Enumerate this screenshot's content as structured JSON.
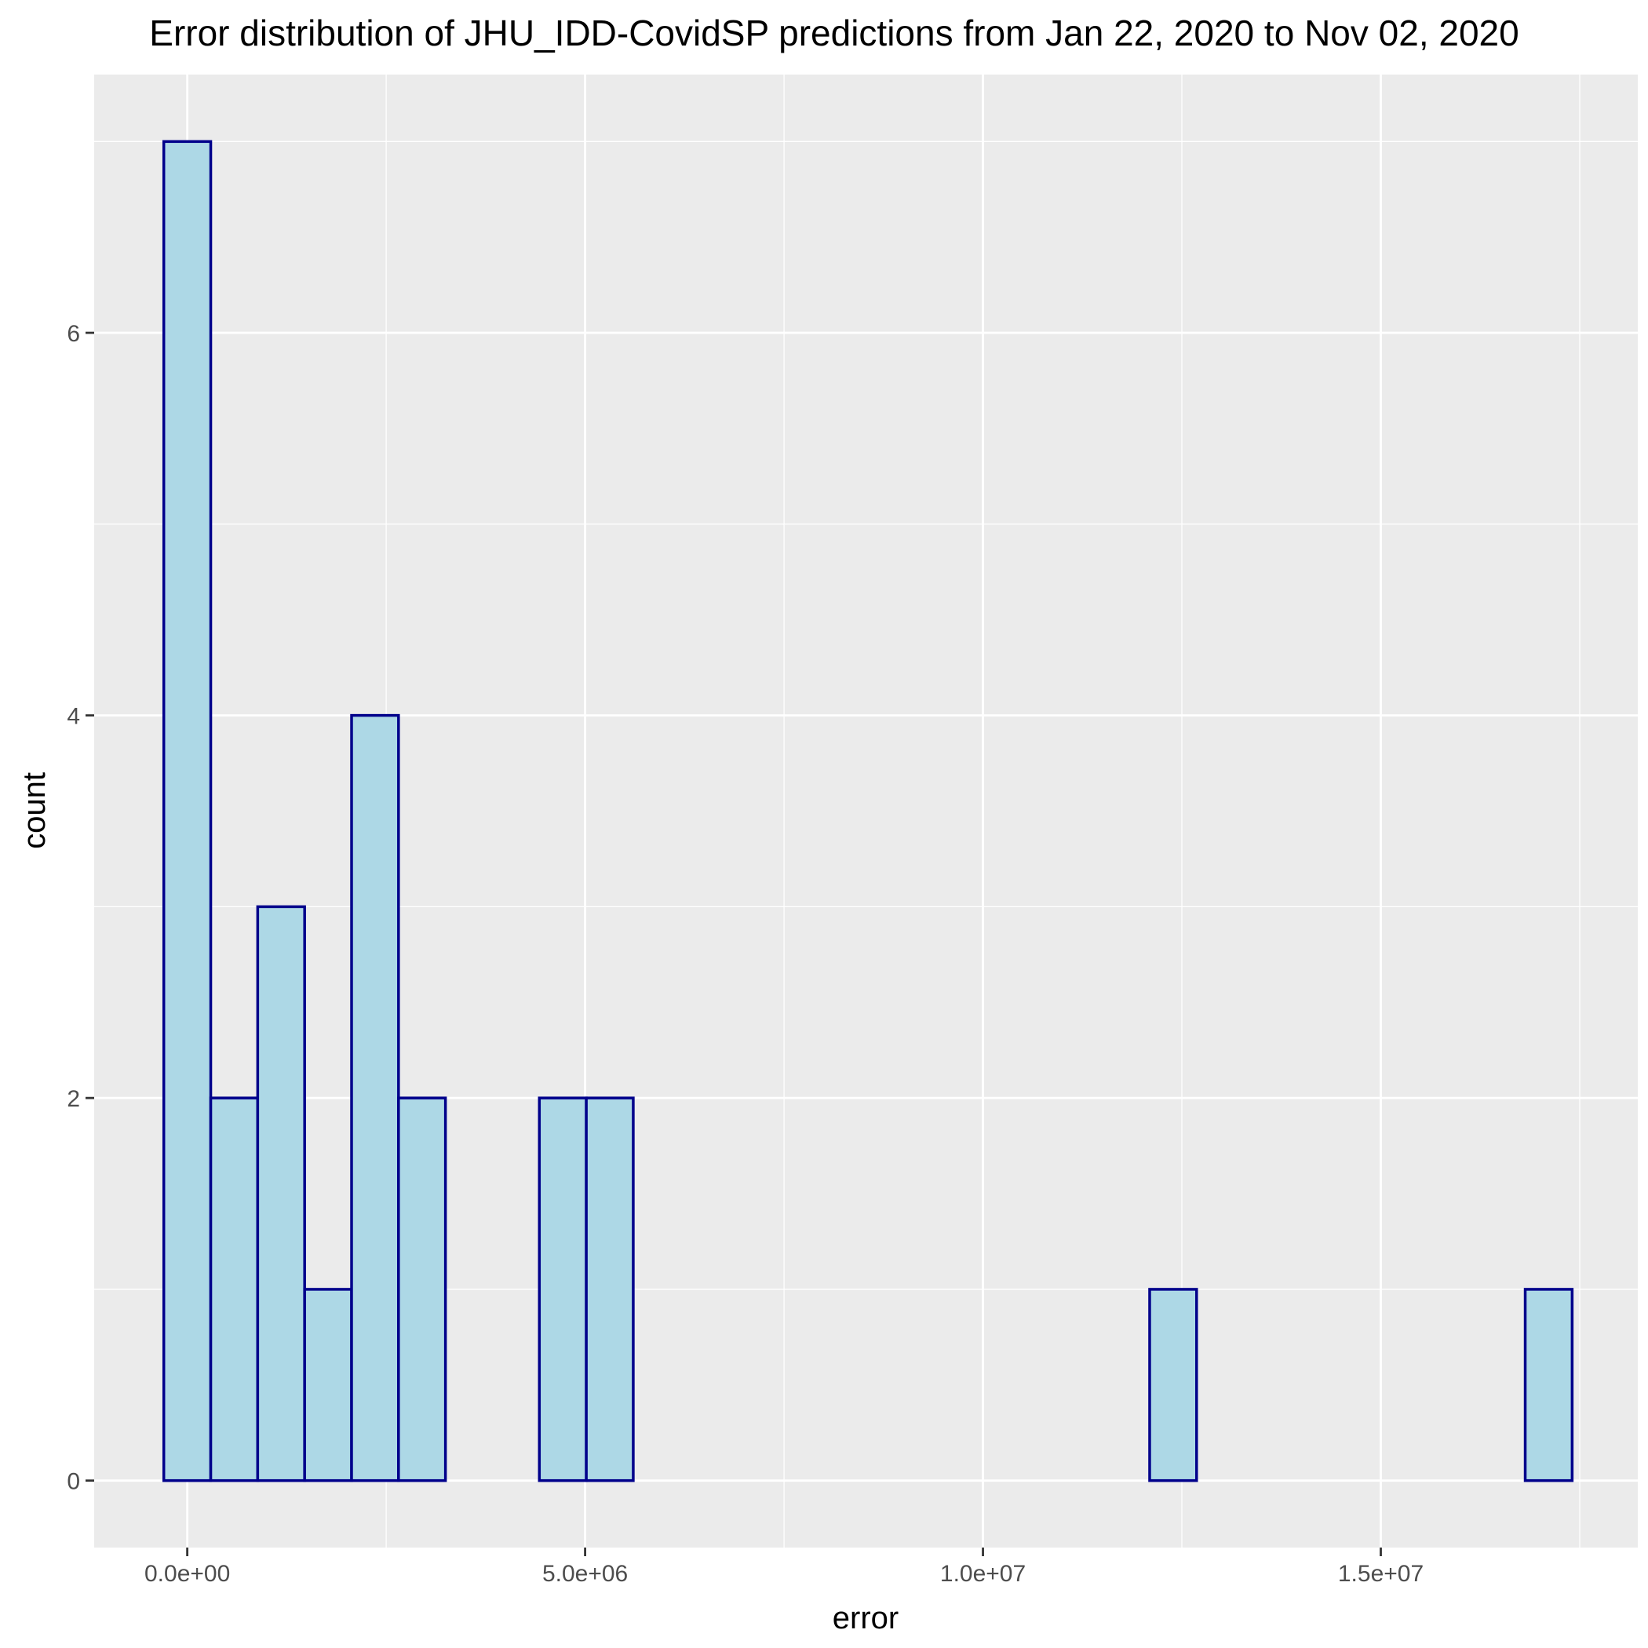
{
  "chart_data": {
    "type": "bar",
    "title": "Error distribution of JHU_IDD-CovidSP predictions from Jan 22, 2020 to Nov 02, 2020",
    "xlabel": "error",
    "ylabel": "count",
    "x_ticks": [
      {
        "value": 0,
        "label": "0.0e+00"
      },
      {
        "value": 5000000,
        "label": "5.0e+06"
      },
      {
        "value": 10000000,
        "label": "1.0e+07"
      },
      {
        "value": 15000000,
        "label": "1.5e+07"
      }
    ],
    "y_ticks": [
      {
        "value": 0,
        "label": "0"
      },
      {
        "value": 2,
        "label": "2"
      },
      {
        "value": 4,
        "label": "4"
      },
      {
        "value": 6,
        "label": "6"
      }
    ],
    "xlim": [
      -1170000,
      18230000
    ],
    "ylim": [
      -0.35,
      7.35
    ],
    "bin_width": 590000,
    "bin_centers": [
      0,
      590000,
      1180000,
      1770000,
      2360000,
      2950000,
      3540000,
      4130000,
      4720000,
      5310000,
      5900000,
      6490000,
      7080000,
      7670000,
      8260000,
      8850000,
      9440000,
      10030000,
      10620000,
      11210000,
      11800000,
      12390000,
      12980000,
      13570000,
      14160000,
      14750000,
      15340000,
      15930000,
      16520000,
      17110000
    ],
    "counts": [
      7,
      2,
      3,
      1,
      4,
      2,
      0,
      0,
      2,
      2,
      0,
      0,
      0,
      0,
      0,
      0,
      0,
      0,
      0,
      0,
      0,
      1,
      0,
      0,
      0,
      0,
      0,
      0,
      0,
      1
    ],
    "grid": true,
    "legend": "none",
    "colors": {
      "panel": "#ebebeb",
      "grid": "#ffffff",
      "bar_fill": "#add8e6",
      "bar_outline": "#00008b",
      "tick": "#333333"
    }
  }
}
